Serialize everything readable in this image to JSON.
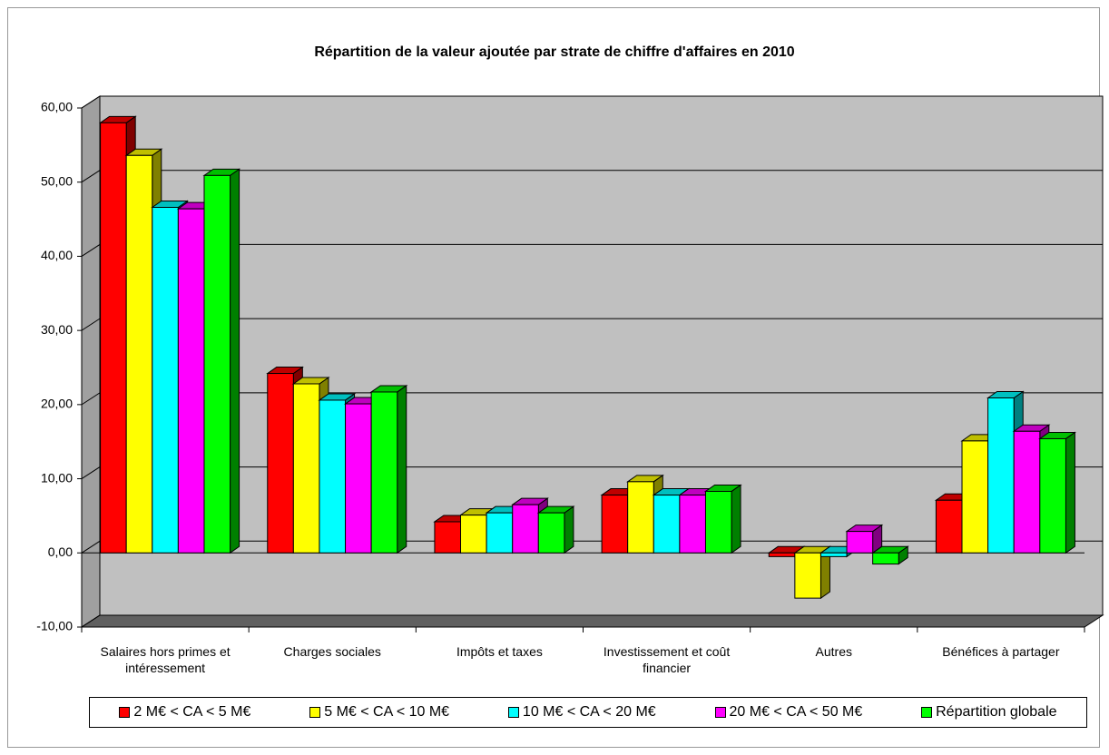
{
  "chart_data": {
    "type": "bar3d",
    "title": "Répartition de la valeur ajoutée par strate de chiffre d'affaires en 2010",
    "categories": [
      "Salaires hors primes et intéressement",
      "Charges sociales",
      "Impôts et taxes",
      "Investissement et coût financier",
      "Autres",
      "Bénéfices à partager"
    ],
    "series": [
      {
        "name": "2 M€ < CA < 5 M€",
        "color": "#ff0000",
        "values": [
          58.0,
          24.2,
          4.2,
          7.8,
          -0.5,
          7.1
        ]
      },
      {
        "name": "5 M€ < CA < 10 M€",
        "color": "#ffff00",
        "values": [
          53.6,
          22.8,
          5.1,
          9.6,
          -6.1,
          15.1
        ]
      },
      {
        "name": "10 M€ < CA < 20 M€",
        "color": "#00ffff",
        "values": [
          46.6,
          20.6,
          5.4,
          7.8,
          -0.5,
          20.9
        ]
      },
      {
        "name": "20 M€ < CA < 50 M€",
        "color": "#ff00ff",
        "values": [
          46.4,
          20.1,
          6.5,
          7.8,
          2.9,
          16.4
        ]
      },
      {
        "name": "Répartition globale",
        "color": "#00ff00",
        "values": [
          50.9,
          21.7,
          5.4,
          8.3,
          -1.5,
          15.4
        ]
      }
    ],
    "ylim": [
      -10,
      60
    ],
    "yticks": [
      {
        "value": -10,
        "label": "-10,00"
      },
      {
        "value": 0,
        "label": "0,00"
      },
      {
        "value": 10,
        "label": "10,00"
      },
      {
        "value": 20,
        "label": "20,00"
      },
      {
        "value": 30,
        "label": "30,00"
      },
      {
        "value": 40,
        "label": "40,00"
      },
      {
        "value": 50,
        "label": "50,00"
      },
      {
        "value": 60,
        "label": "60,00"
      }
    ],
    "grid": true
  }
}
